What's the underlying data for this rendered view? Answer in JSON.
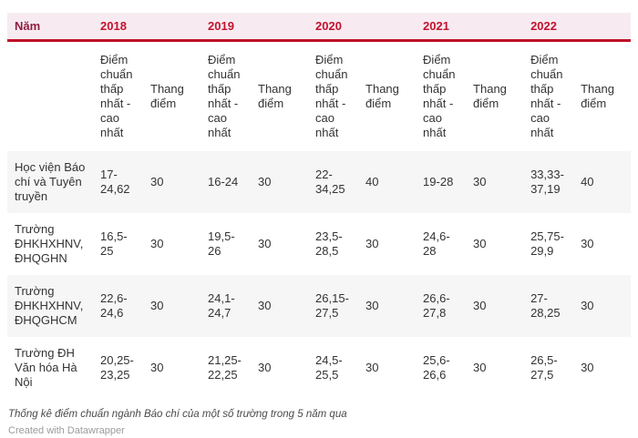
{
  "colors": {
    "header_bg": "#f7ebf1",
    "year_text": "#c4122d",
    "corner_text": "#8e1d3f",
    "rule": "#bf1126",
    "stripe": "#f6f6f6",
    "body_text": "#333333"
  },
  "table": {
    "corner_label": "Năm",
    "years": [
      "2018",
      "2019",
      "2020",
      "2021",
      "2022"
    ],
    "subheaders": {
      "range": "Điểm chuẩn thấp nhất - cao nhất",
      "scale": "Thang điểm"
    },
    "rows": [
      {
        "name": "Học viện Báo chí và Tuyên truyền",
        "cells": [
          {
            "range": "17-24,62",
            "scale": "30"
          },
          {
            "range": "16-24",
            "scale": "30"
          },
          {
            "range": "22-34,25",
            "scale": "40"
          },
          {
            "range": "19-28",
            "scale": "30"
          },
          {
            "range": "33,33-37,19",
            "scale": "40"
          }
        ]
      },
      {
        "name": "Trường ĐHKHXHNV, ĐHQGHN",
        "cells": [
          {
            "range": "16,5-25",
            "scale": "30"
          },
          {
            "range": "19,5-26",
            "scale": "30"
          },
          {
            "range": "23,5-28,5",
            "scale": "30"
          },
          {
            "range": "24,6-28",
            "scale": "30"
          },
          {
            "range": "25,75-29,9",
            "scale": "30"
          }
        ]
      },
      {
        "name": "Trường ĐHKHXHNV, ĐHQGHCM",
        "cells": [
          {
            "range": "22,6-24,6",
            "scale": "30"
          },
          {
            "range": "24,1-24,7",
            "scale": "30"
          },
          {
            "range": "26,15-27,5",
            "scale": "30"
          },
          {
            "range": "26,6-27,8",
            "scale": "30"
          },
          {
            "range": "27-28,25",
            "scale": "30"
          }
        ]
      },
      {
        "name": "Trường ĐH Văn hóa Hà Nội",
        "cells": [
          {
            "range": "20,25-23,25",
            "scale": "30"
          },
          {
            "range": "21,25-22,25",
            "scale": "30"
          },
          {
            "range": "24,5-25,5",
            "scale": "30"
          },
          {
            "range": "25,6-26,6",
            "scale": "30"
          },
          {
            "range": "26,5-27,5",
            "scale": "30"
          }
        ]
      }
    ]
  },
  "footer": {
    "caption": "Thống kê điểm chuẩn ngành Báo chí của một số trường trong 5 năm qua",
    "credit": "Created with Datawrapper"
  }
}
